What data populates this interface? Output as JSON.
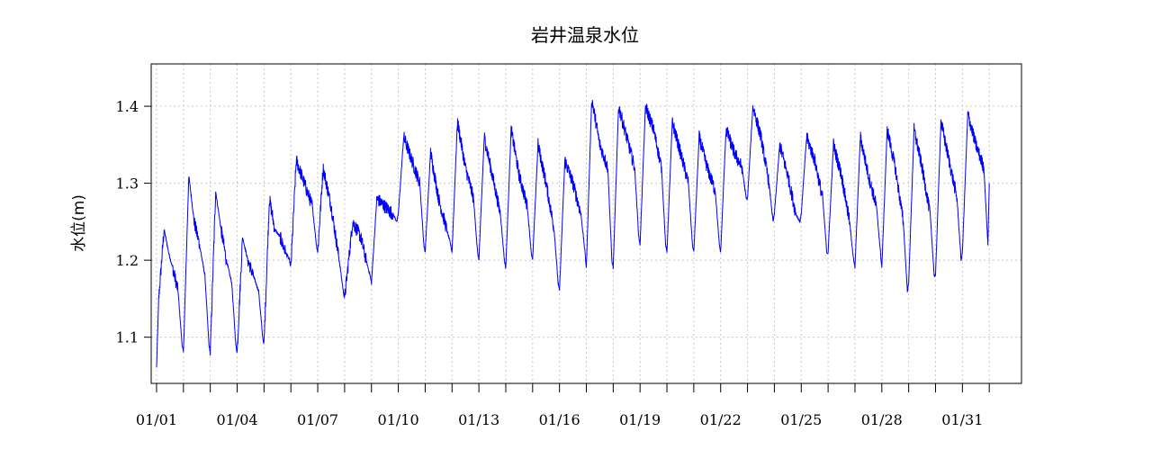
{
  "chart_data": {
    "type": "line",
    "title": "岩井温泉水位",
    "ylabel": "水位(m)",
    "xlabel": "",
    "xlim": [
      -0.2,
      32.2
    ],
    "ylim": [
      1.04,
      1.455
    ],
    "grid": true,
    "x_ticks": [
      0,
      1,
      2,
      3,
      4,
      5,
      6,
      7,
      8,
      9,
      10,
      11,
      12,
      13,
      14,
      15,
      16,
      17,
      18,
      19,
      20,
      21,
      22,
      23,
      24,
      25,
      26,
      27,
      28,
      29,
      30,
      31
    ],
    "x_tick_labels": [
      {
        "x": 0,
        "label": "01/01"
      },
      {
        "x": 3,
        "label": "01/04"
      },
      {
        "x": 6,
        "label": "01/07"
      },
      {
        "x": 9,
        "label": "01/10"
      },
      {
        "x": 12,
        "label": "01/13"
      },
      {
        "x": 15,
        "label": "01/16"
      },
      {
        "x": 18,
        "label": "01/19"
      },
      {
        "x": 21,
        "label": "01/22"
      },
      {
        "x": 24,
        "label": "01/25"
      },
      {
        "x": 27,
        "label": "01/28"
      },
      {
        "x": 30,
        "label": "01/31"
      }
    ],
    "y_ticks": [
      1.1,
      1.2,
      1.3,
      1.4
    ],
    "y_tick_labels": [
      "1.1",
      "1.2",
      "1.3",
      "1.4"
    ],
    "series": [
      {
        "color": "#0000ff",
        "x": [
          0,
          0.08,
          0.28,
          0.45,
          0.6,
          0.8,
          0.95,
          1.0,
          1.2,
          1.4,
          1.6,
          1.8,
          1.95,
          2.0,
          2.2,
          2.4,
          2.6,
          2.8,
          2.95,
          3.0,
          3.2,
          3.4,
          3.6,
          3.8,
          3.95,
          4.0,
          4.2,
          4.4,
          4.6,
          4.8,
          4.95,
          5.0,
          5.2,
          5.5,
          5.8,
          5.95,
          6.0,
          6.2,
          6.5,
          6.8,
          6.95,
          7.0,
          7.3,
          7.6,
          7.8,
          7.95,
          8.0,
          8.2,
          8.5,
          8.8,
          8.95,
          9.0,
          9.2,
          9.5,
          9.8,
          9.95,
          10.0,
          10.2,
          10.5,
          10.8,
          10.95,
          11.0,
          11.2,
          11.5,
          11.8,
          11.95,
          12.0,
          12.2,
          12.5,
          12.8,
          12.95,
          13.0,
          13.2,
          13.5,
          13.8,
          13.95,
          14.0,
          14.2,
          14.5,
          14.8,
          14.95,
          15.0,
          15.2,
          15.5,
          15.8,
          15.95,
          16.0,
          16.2,
          16.5,
          16.8,
          16.95,
          17.0,
          17.2,
          17.5,
          17.8,
          17.95,
          18.0,
          18.2,
          18.5,
          18.8,
          18.95,
          19.0,
          19.2,
          19.5,
          19.8,
          19.95,
          20.0,
          20.2,
          20.5,
          20.8,
          20.95,
          21.0,
          21.2,
          21.5,
          21.8,
          21.95,
          22.0,
          22.2,
          22.5,
          22.8,
          22.95,
          23.0,
          23.2,
          23.5,
          23.8,
          23.95,
          24.0,
          24.2,
          24.5,
          24.8,
          24.95,
          25.0,
          25.2,
          25.5,
          25.8,
          25.95,
          26.0,
          26.2,
          26.5,
          26.8,
          26.95,
          27.0,
          27.2,
          27.5,
          27.8,
          27.95,
          28.0,
          28.2,
          28.5,
          28.8,
          28.95,
          29.0,
          29.2,
          29.5,
          29.8,
          29.95,
          30.0,
          30.2,
          30.5,
          30.8,
          30.95,
          31.0
        ],
        "y": [
          1.06,
          1.15,
          1.24,
          1.21,
          1.19,
          1.16,
          1.09,
          1.08,
          1.31,
          1.25,
          1.22,
          1.18,
          1.09,
          1.08,
          1.29,
          1.24,
          1.2,
          1.17,
          1.09,
          1.08,
          1.23,
          1.2,
          1.18,
          1.16,
          1.1,
          1.09,
          1.28,
          1.24,
          1.23,
          1.21,
          1.2,
          1.19,
          1.33,
          1.3,
          1.27,
          1.22,
          1.21,
          1.32,
          1.27,
          1.2,
          1.16,
          1.15,
          1.25,
          1.23,
          1.2,
          1.18,
          1.17,
          1.28,
          1.27,
          1.26,
          1.25,
          1.26,
          1.36,
          1.33,
          1.3,
          1.22,
          1.21,
          1.34,
          1.28,
          1.24,
          1.22,
          1.21,
          1.38,
          1.32,
          1.28,
          1.21,
          1.2,
          1.36,
          1.31,
          1.26,
          1.2,
          1.19,
          1.37,
          1.31,
          1.27,
          1.21,
          1.2,
          1.35,
          1.3,
          1.24,
          1.17,
          1.16,
          1.33,
          1.3,
          1.26,
          1.21,
          1.19,
          1.41,
          1.35,
          1.32,
          1.2,
          1.19,
          1.4,
          1.36,
          1.32,
          1.23,
          1.22,
          1.4,
          1.37,
          1.32,
          1.22,
          1.21,
          1.38,
          1.34,
          1.3,
          1.22,
          1.21,
          1.36,
          1.32,
          1.29,
          1.22,
          1.21,
          1.37,
          1.34,
          1.32,
          1.28,
          1.28,
          1.4,
          1.36,
          1.3,
          1.25,
          1.26,
          1.35,
          1.31,
          1.26,
          1.25,
          1.26,
          1.36,
          1.33,
          1.28,
          1.21,
          1.21,
          1.35,
          1.31,
          1.25,
          1.2,
          1.19,
          1.36,
          1.31,
          1.27,
          1.21,
          1.19,
          1.37,
          1.32,
          1.25,
          1.16,
          1.17,
          1.37,
          1.32,
          1.26,
          1.18,
          1.18,
          1.38,
          1.33,
          1.28,
          1.2,
          1.21,
          1.39,
          1.35,
          1.32,
          1.22,
          1.3
        ]
      }
    ]
  }
}
